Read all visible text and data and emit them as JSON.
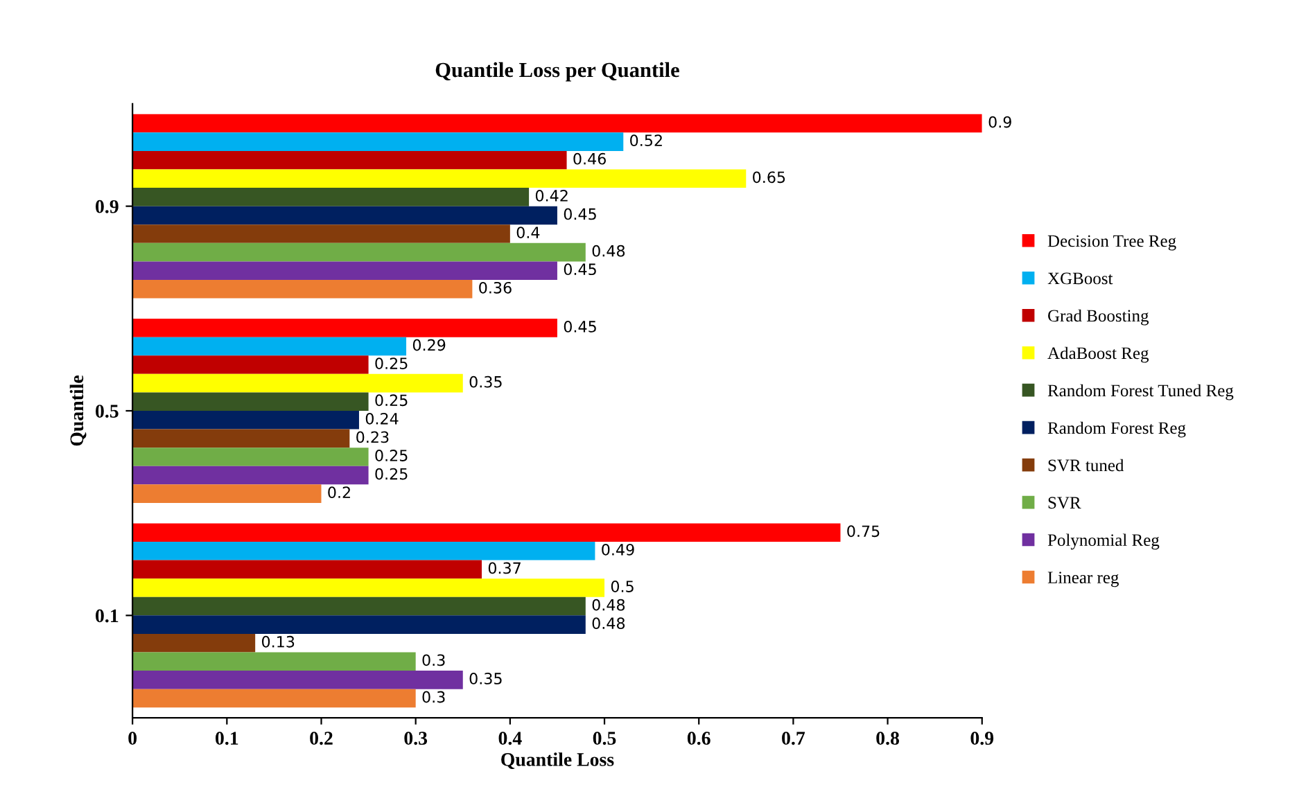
{
  "chart_data": {
    "type": "bar",
    "orientation": "horizontal",
    "title": "Quantile Loss per Quantile",
    "xlabel": "Quantile Loss",
    "ylabel": "Quantile",
    "categories": [
      "0.9",
      "0.5",
      "0.1"
    ],
    "series": [
      {
        "name": "Decision Tree Reg",
        "color": "#ff0000",
        "values": [
          0.9,
          0.45,
          0.75
        ]
      },
      {
        "name": "XGBoost",
        "color": "#00b0f0",
        "values": [
          0.52,
          0.29,
          0.49
        ]
      },
      {
        "name": "Grad Boosting",
        "color": "#c00000",
        "values": [
          0.46,
          0.25,
          0.37
        ]
      },
      {
        "name": "AdaBoost Reg",
        "color": "#ffff00",
        "values": [
          0.65,
          0.35,
          0.5
        ]
      },
      {
        "name": "Random Forest Tuned Reg",
        "color": "#375623",
        "values": [
          0.42,
          0.25,
          0.48
        ]
      },
      {
        "name": "Random Forest Reg",
        "color": "#002060",
        "values": [
          0.45,
          0.24,
          0.48
        ]
      },
      {
        "name": "SVR tuned",
        "color": "#843c0c",
        "values": [
          0.4,
          0.23,
          0.13
        ]
      },
      {
        "name": "SVR",
        "color": "#70ad47",
        "values": [
          0.48,
          0.25,
          0.3
        ]
      },
      {
        "name": "Polynomial Reg",
        "color": "#7030a0",
        "values": [
          0.45,
          0.25,
          0.35
        ]
      },
      {
        "name": "Linear reg",
        "color": "#ed7d31",
        "values": [
          0.36,
          0.2,
          0.3
        ]
      }
    ],
    "xlim": [
      0,
      0.9
    ],
    "xticks": [
      0,
      0.1,
      0.2,
      0.3,
      0.4,
      0.5,
      0.6,
      0.7,
      0.8,
      0.9
    ],
    "data_labels": true,
    "grid": false,
    "legend": "right"
  }
}
